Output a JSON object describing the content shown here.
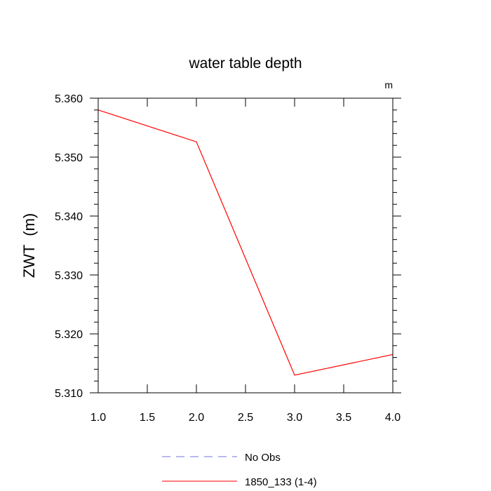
{
  "chart_data": {
    "type": "line",
    "title": "water table depth",
    "units_label": "m",
    "ylabel": "ZWT  (m)",
    "xlabel": "",
    "xlim": [
      1.0,
      4.0
    ],
    "ylim": [
      5.31,
      5.36
    ],
    "x_ticks": [
      "1.0",
      "1.5",
      "2.0",
      "2.5",
      "3.0",
      "3.5",
      "4.0"
    ],
    "y_ticks": [
      "5.310",
      "5.320",
      "5.330",
      "5.340",
      "5.350",
      "5.360"
    ],
    "series": [
      {
        "name": "1850_133 (1-4)",
        "color": "#ff0000",
        "style": "solid",
        "x": [
          1.0,
          2.0,
          3.0,
          4.0
        ],
        "y": [
          5.358,
          5.3526,
          5.313,
          5.3165
        ]
      }
    ],
    "legend": [
      {
        "label": "No Obs",
        "color": "#7070e0",
        "style": "dashed"
      },
      {
        "label": "1850_133 (1-4)",
        "color": "#ff0000",
        "style": "solid"
      }
    ],
    "legend_position": "bottom",
    "grid": false
  }
}
